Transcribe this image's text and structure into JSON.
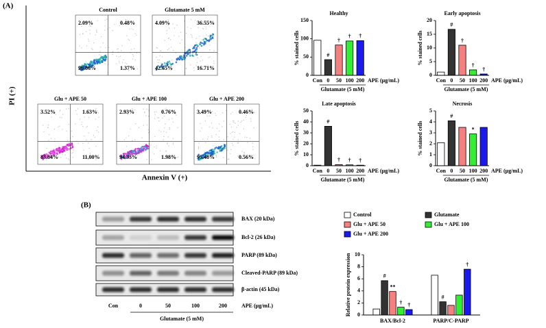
{
  "panel_labels": [
    "(A)",
    "(B)"
  ],
  "flow": {
    "y_axis": "PI (+)",
    "x_axis": "Annexin V (+)",
    "plots": [
      {
        "title": "Control",
        "quadrants": [
          "2.09%",
          "0.48%",
          "96.86%",
          "1.37%"
        ]
      },
      {
        "title": "Glutamate 5 mM",
        "quadrants": [
          "4.09%",
          "36.55%",
          "42.65%",
          "16.71%"
        ]
      },
      {
        "title": "Glu + APE 50",
        "quadrants": [
          "3.52%",
          "1.63%",
          "83.84%",
          "11.00%"
        ]
      },
      {
        "title": "Glu + APE 100",
        "quadrants": [
          "2.93%",
          "0.76%",
          "94.33%",
          "1.98%"
        ]
      },
      {
        "title": "Glu + APE 200",
        "quadrants": [
          "3.49%",
          "0.46%",
          "95.48%",
          "0.56%"
        ]
      }
    ]
  },
  "blot": {
    "proteins": [
      "BAX (20 kDa)",
      "Bcl-2 (26 kDa)",
      "PARP (89 kDa)",
      "Cleaved-PARP (89 kDa)",
      "β-actin (45 kDa)"
    ],
    "lanes": [
      "Con",
      "0",
      "50",
      "100",
      "200"
    ],
    "x_label": "APE (μg/mL)",
    "group_label": "Glutamate (5 mM)"
  },
  "chart_data": [
    {
      "type": "bar",
      "title": "Healthy",
      "ylabel": "% stained cells",
      "xlabel": "APE (μg/mL)",
      "group_label": "Glutamate (5 mM)",
      "categories": [
        "Con",
        "0",
        "50",
        "100",
        "200"
      ],
      "values": [
        96,
        43,
        83,
        94,
        95
      ],
      "annotations": [
        null,
        "#",
        "†",
        "†",
        "†"
      ],
      "colors": [
        "#ffffff",
        "#333333",
        "#f48080",
        "#33ee33",
        "#1a1aee"
      ],
      "ylim": [
        0,
        150
      ],
      "yticks": [
        0,
        50,
        100,
        150
      ]
    },
    {
      "type": "bar",
      "title": "Early apoptosis",
      "ylabel": "% stained cells",
      "xlabel": "APE (μg/mL)",
      "group_label": "Glutamate (5 mM)",
      "categories": [
        "Con",
        "0",
        "50",
        "100",
        "200"
      ],
      "values": [
        1.2,
        16.8,
        11,
        2,
        0.5
      ],
      "annotations": [
        null,
        "#",
        "†",
        "†",
        "†"
      ],
      "colors": [
        "#ffffff",
        "#333333",
        "#f48080",
        "#33ee33",
        "#1a1aee"
      ],
      "ylim": [
        0,
        20
      ],
      "yticks": [
        0,
        5,
        10,
        15,
        20
      ]
    },
    {
      "type": "bar",
      "title": "Late apoptosis",
      "ylabel": "% stained cells",
      "xlabel": "APE (μg/mL)",
      "group_label": "Glutamate (5 mM)",
      "categories": [
        "Con",
        "0",
        "50",
        "100",
        "200"
      ],
      "values": [
        0.5,
        36,
        1,
        0.8,
        0.5
      ],
      "annotations": [
        null,
        "#",
        "†",
        "†",
        "†"
      ],
      "colors": [
        "#ffffff",
        "#333333",
        "#f48080",
        "#33ee33",
        "#1a1aee"
      ],
      "ylim": [
        0,
        50
      ],
      "yticks": [
        0,
        10,
        20,
        30,
        40,
        50
      ]
    },
    {
      "type": "bar",
      "title": "Necrosis",
      "ylabel": "% stained cells",
      "xlabel": "APE (μg/mL)",
      "group_label": "Glutamate (5 mM)",
      "categories": [
        "Con",
        "0",
        "50",
        "100",
        "200"
      ],
      "values": [
        2.1,
        4.1,
        3.5,
        2.9,
        3.5
      ],
      "annotations": [
        null,
        "#",
        null,
        "*",
        null
      ],
      "colors": [
        "#ffffff",
        "#333333",
        "#f48080",
        "#33ee33",
        "#1a1aee"
      ],
      "ylim": [
        0,
        5
      ],
      "yticks": [
        0,
        1,
        2,
        3,
        4,
        5
      ]
    },
    {
      "type": "grouped_bar",
      "ylabel": "Relative protein expression",
      "categories": [
        "BAX/Bcl-2",
        "PARP/C-PARP"
      ],
      "series": [
        {
          "name": "Control",
          "color": "#ffffff",
          "values": [
            1.0,
            6.6
          ],
          "annotations": [
            null,
            null
          ]
        },
        {
          "name": "Glutamate",
          "color": "#333333",
          "values": [
            5.7,
            2.2
          ],
          "annotations": [
            "#",
            "#"
          ]
        },
        {
          "name": "Glu + APE 50",
          "color": "#f48080",
          "values": [
            3.9,
            1.6
          ],
          "annotations": [
            "**",
            null
          ]
        },
        {
          "name": "Glu + APE 100",
          "color": "#33ee33",
          "values": [
            1.3,
            3.3
          ],
          "annotations": [
            "†",
            null
          ]
        },
        {
          "name": "Glu + APE 200",
          "color": "#1a1aee",
          "values": [
            0.9,
            7.6
          ],
          "annotations": [
            "†",
            "†"
          ]
        }
      ],
      "ylim": [
        0,
        10
      ],
      "yticks": [
        0,
        2,
        4,
        6,
        8,
        10
      ]
    }
  ]
}
